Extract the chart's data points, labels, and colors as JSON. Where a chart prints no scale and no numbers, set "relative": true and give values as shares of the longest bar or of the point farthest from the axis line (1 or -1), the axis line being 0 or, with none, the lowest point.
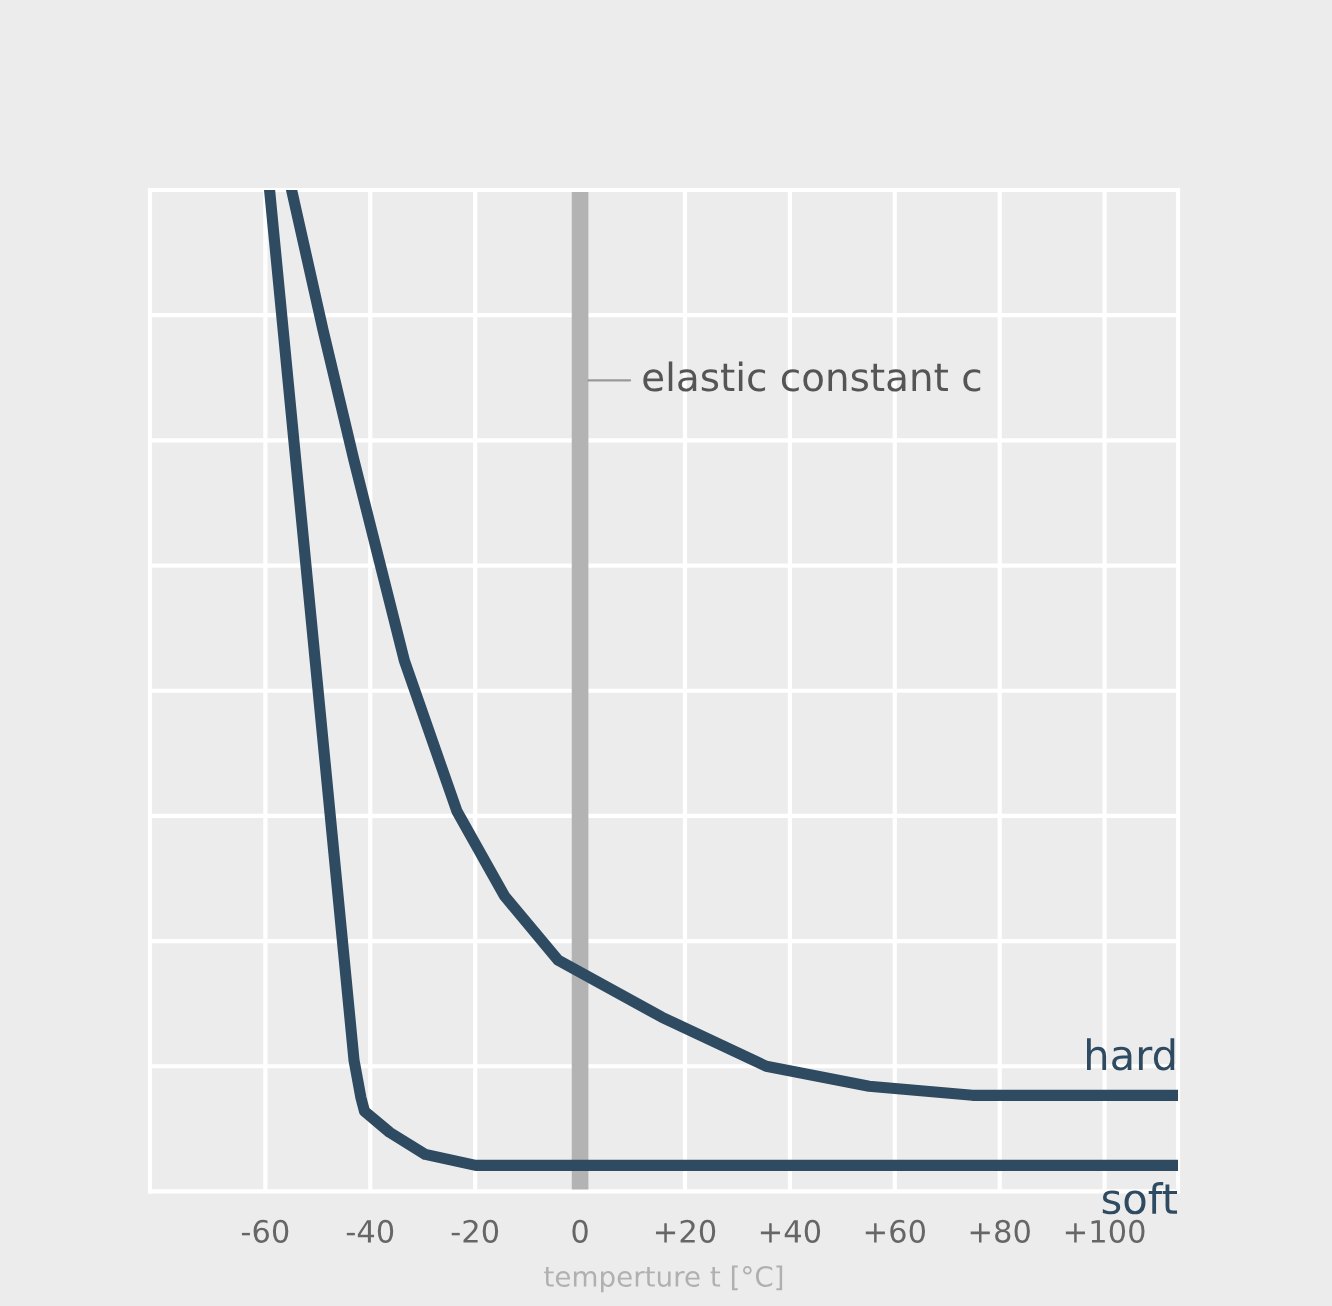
{
  "chart_data": {
    "type": "line",
    "relative": true,
    "xlabel": "temperture t [°C]",
    "xlim": [
      -82,
      114
    ],
    "xticks": [
      {
        "value": -60,
        "label": "-60"
      },
      {
        "value": -40,
        "label": "-40"
      },
      {
        "value": -20,
        "label": "-20"
      },
      {
        "value": 0,
        "label": "0"
      },
      {
        "value": 20,
        "label": "+20"
      },
      {
        "value": 40,
        "label": "+40"
      },
      {
        "value": 60,
        "label": "+60"
      },
      {
        "value": 80,
        "label": "+80"
      },
      {
        "value": 100,
        "label": "+100"
      }
    ],
    "grid": true,
    "legend": false,
    "marker": "none",
    "line_style": "solid",
    "ref_lines": [
      {
        "axis": "x",
        "value": 0,
        "label": "elastic constant c",
        "color": "#b3b3b3"
      }
    ],
    "series": [
      {
        "name": "hard",
        "color": "#2f4b62",
        "x": [
          -55,
          -49,
          -43.1,
          -33.5,
          -23.5,
          -14.4,
          -4.2,
          15.6,
          35.5,
          55.1,
          74.8,
          114
        ],
        "values": [
          1.0,
          0.86,
          0.73,
          0.53,
          0.38,
          0.295,
          0.231,
          0.174,
          0.125,
          0.105,
          0.096,
          0.096
        ]
      },
      {
        "name": "soft",
        "color": "#2f4b62",
        "x": [
          -59.2,
          -50.5,
          -43.1,
          -41.8,
          -41.1,
          -36.3,
          -29.5,
          -19.9,
          114
        ],
        "values": [
          1.0,
          0.53,
          0.131,
          0.094,
          0.08,
          0.059,
          0.037,
          0.026,
          0.026
        ]
      }
    ]
  }
}
